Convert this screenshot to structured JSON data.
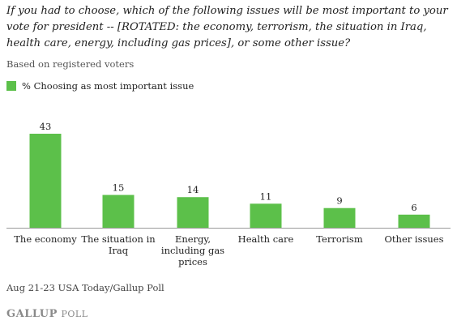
{
  "question": "If you had to choose, which of the following issues will be most important to your vote for president -- [ROTATED: the economy, terrorism, the situation in Iraq, health care, energy, including gas prices], or some other issue?",
  "note": "Based on registered voters",
  "source": "Aug 21-23 USA Today/Gallup Poll",
  "logo": {
    "brand": "GALLUP",
    "product": "POLL"
  },
  "colors": {
    "bar": "#5cc04a",
    "baseline": "#999999"
  },
  "chart_data": {
    "type": "bar",
    "categories": [
      [
        "The economy"
      ],
      [
        "The situation in",
        "Iraq"
      ],
      [
        "Energy,",
        "including gas",
        "prices"
      ],
      [
        "Health care"
      ],
      [
        "Terrorism"
      ],
      [
        "Other issues"
      ]
    ],
    "series": [
      {
        "name": "% Choosing as most important issue",
        "values": [
          43,
          15,
          14,
          11,
          9,
          6
        ]
      }
    ],
    "ylim": [
      0,
      43
    ],
    "grid": false,
    "legend": "top-left"
  }
}
